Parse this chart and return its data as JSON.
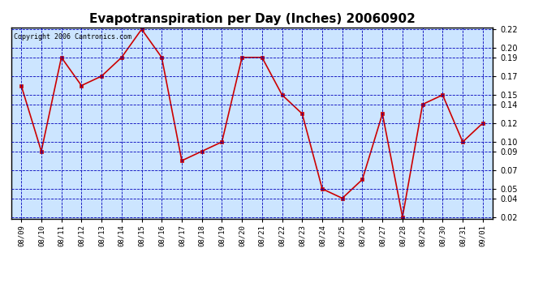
{
  "title": "Evapotranspiration per Day (Inches) 20060902",
  "copyright": "Copyright 2006 Cantronics.com",
  "x_labels": [
    "08/09",
    "08/10",
    "08/11",
    "08/12",
    "08/13",
    "08/14",
    "08/15",
    "08/16",
    "08/17",
    "08/18",
    "08/19",
    "08/20",
    "08/21",
    "08/22",
    "08/23",
    "08/24",
    "08/25",
    "08/26",
    "08/27",
    "08/28",
    "08/29",
    "08/30",
    "08/31",
    "09/01"
  ],
  "y_values": [
    0.16,
    0.09,
    0.19,
    0.16,
    0.17,
    0.19,
    0.22,
    0.19,
    0.08,
    0.09,
    0.1,
    0.19,
    0.19,
    0.15,
    0.13,
    0.05,
    0.04,
    0.06,
    0.13,
    0.02,
    0.14,
    0.15,
    0.1,
    0.12
  ],
  "line_color": "#cc0000",
  "marker_color": "#cc0000",
  "background_color": "#cce5ff",
  "grid_color": "#0000bb",
  "title_fontsize": 11,
  "y_min": 0.02,
  "y_max": 0.22,
  "y_ticks": [
    0.02,
    0.04,
    0.05,
    0.07,
    0.09,
    0.1,
    0.12,
    0.14,
    0.15,
    0.17,
    0.19,
    0.2,
    0.22
  ],
  "fig_width": 6.9,
  "fig_height": 3.75
}
